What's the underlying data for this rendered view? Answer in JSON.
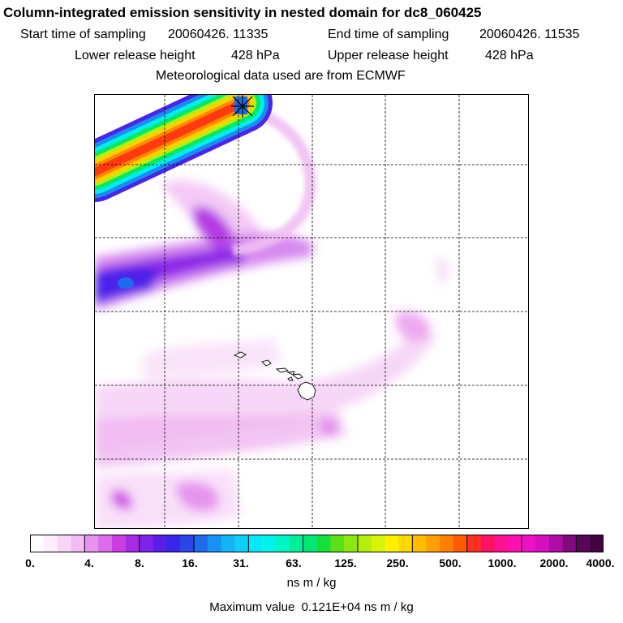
{
  "header": {
    "title": "Column-integrated emission sensitivity in nested domain for dc8_060425",
    "start_label": "Start time of sampling",
    "start_value": "20060426. 11335",
    "end_label": "End time of sampling",
    "end_value": "20060426. 11535",
    "lower_label": "Lower release height",
    "lower_value": "428 hPa",
    "upper_label": "Upper release height",
    "upper_value": "428 hPa",
    "met_text": "Meteorological data used are from ECMWF"
  },
  "colorbar": {
    "ticks": [
      "0.",
      "4.",
      "8.",
      "16.",
      "31.",
      "63.",
      "125.",
      "250.",
      "500.",
      "1000.",
      "2000.",
      "4000."
    ],
    "colors": [
      "#ffffff",
      "#fdeefd",
      "#f8d6f8",
      "#f3bcf5",
      "#e992f0",
      "#dd6ce8",
      "#cb3ee4",
      "#a82ae6",
      "#7e22e8",
      "#5a1ee8",
      "#3a26e8",
      "#2a46ea",
      "#1e6cee",
      "#1892f2",
      "#12b4f6",
      "#0cd0fa",
      "#06e8f8",
      "#00f4e8",
      "#00f4c4",
      "#00ee9a",
      "#00e874",
      "#14e03c",
      "#5ce018",
      "#8ee810",
      "#b6ee0c",
      "#d8f208",
      "#fff000",
      "#ffd800",
      "#ffbc00",
      "#ffa000",
      "#ff8000",
      "#ff5a00",
      "#ff3020",
      "#ff1060",
      "#ff1090",
      "#ff10b4",
      "#f010c8",
      "#d610c0",
      "#b00ca8",
      "#82087e",
      "#5a0656",
      "#400440"
    ],
    "units": "ns m / kg"
  },
  "footer": {
    "max_label": "Maximum value",
    "max_value": "0.121E+04 ns m / kg"
  }
}
